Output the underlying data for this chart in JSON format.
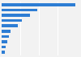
{
  "values": [
    775,
    373,
    296,
    209,
    168,
    92,
    73,
    60,
    45,
    30
  ],
  "bar_color": "#2d7dd4",
  "background_color": "#f2f2f2",
  "grid_color": "#ffffff",
  "num_bars": 10,
  "bar_height": 0.55
}
